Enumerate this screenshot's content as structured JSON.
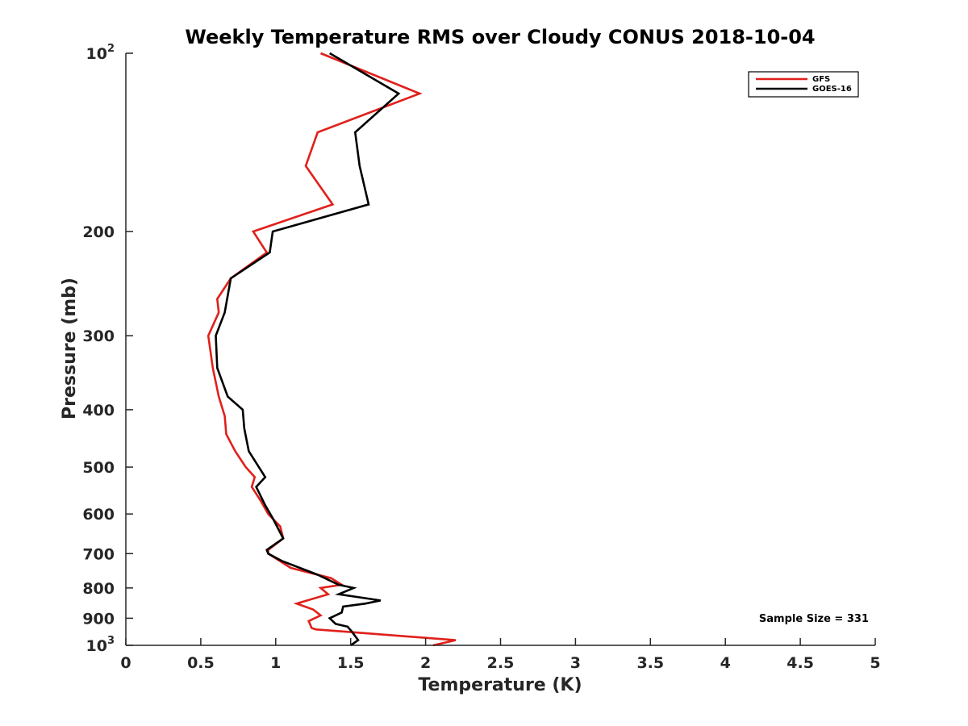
{
  "chart_data": {
    "type": "line",
    "title": "Weekly Temperature RMS over Cloudy CONUS 2018-10-04",
    "xlabel": "Temperature (K)",
    "ylabel": "Pressure (mb)",
    "xlim": [
      0,
      5
    ],
    "ylim": [
      100,
      1000
    ],
    "y_scale": "log",
    "y_reversed": true,
    "grid": false,
    "legend_position": "top-right",
    "x_ticks": [
      "0",
      "0.5",
      "1",
      "1.5",
      "2",
      "2.5",
      "3",
      "3.5",
      "4",
      "4.5",
      "5"
    ],
    "y_ticks": [
      {
        "value": 100,
        "base": "10",
        "exp": "2"
      },
      {
        "value": 200,
        "label": "200"
      },
      {
        "value": 300,
        "label": "300"
      },
      {
        "value": 400,
        "label": "400"
      },
      {
        "value": 500,
        "label": "500"
      },
      {
        "value": 600,
        "label": "600"
      },
      {
        "value": 700,
        "label": "700"
      },
      {
        "value": 800,
        "label": "800"
      },
      {
        "value": 900,
        "label": "900"
      },
      {
        "value": 1000,
        "base": "10",
        "exp": "3"
      }
    ],
    "annotation": "Sample Size = 331",
    "series": [
      {
        "name": "GFS",
        "color": "#e0201b",
        "points": [
          [
            1.3,
            100
          ],
          [
            1.96,
            117
          ],
          [
            1.28,
            136
          ],
          [
            1.2,
            155
          ],
          [
            1.38,
            180
          ],
          [
            0.85,
            200
          ],
          [
            0.94,
            217
          ],
          [
            0.7,
            240
          ],
          [
            0.61,
            260
          ],
          [
            0.62,
            274
          ],
          [
            0.55,
            300
          ],
          [
            0.58,
            340
          ],
          [
            0.62,
            380
          ],
          [
            0.66,
            410
          ],
          [
            0.67,
            440
          ],
          [
            0.73,
            470
          ],
          [
            0.8,
            500
          ],
          [
            0.86,
            520
          ],
          [
            0.84,
            540
          ],
          [
            0.9,
            570
          ],
          [
            0.95,
            600
          ],
          [
            1.03,
            630
          ],
          [
            1.05,
            660
          ],
          [
            0.95,
            690
          ],
          [
            0.95,
            700
          ],
          [
            1.1,
            740
          ],
          [
            1.37,
            770
          ],
          [
            1.44,
            790
          ],
          [
            1.3,
            800
          ],
          [
            1.35,
            820
          ],
          [
            1.14,
            850
          ],
          [
            1.25,
            870
          ],
          [
            1.3,
            890
          ],
          [
            1.22,
            910
          ],
          [
            1.24,
            935
          ],
          [
            1.27,
            940
          ],
          [
            1.5,
            950
          ],
          [
            2.2,
            980
          ],
          [
            2.05,
            1000
          ]
        ]
      },
      {
        "name": "GOES-16",
        "color": "#000000",
        "points": [
          [
            1.36,
            100
          ],
          [
            1.82,
            117
          ],
          [
            1.53,
            136
          ],
          [
            1.56,
            155
          ],
          [
            1.62,
            180
          ],
          [
            0.98,
            200
          ],
          [
            0.96,
            217
          ],
          [
            0.7,
            240
          ],
          [
            0.66,
            274
          ],
          [
            0.6,
            300
          ],
          [
            0.61,
            340
          ],
          [
            0.68,
            380
          ],
          [
            0.78,
            400
          ],
          [
            0.79,
            430
          ],
          [
            0.82,
            470
          ],
          [
            0.93,
            520
          ],
          [
            0.87,
            540
          ],
          [
            0.93,
            580
          ],
          [
            0.98,
            610
          ],
          [
            1.05,
            660
          ],
          [
            0.94,
            690
          ],
          [
            0.95,
            700
          ],
          [
            1.04,
            720
          ],
          [
            1.28,
            760
          ],
          [
            1.42,
            790
          ],
          [
            1.52,
            800
          ],
          [
            1.42,
            820
          ],
          [
            1.7,
            840
          ],
          [
            1.6,
            850
          ],
          [
            1.45,
            860
          ],
          [
            1.44,
            880
          ],
          [
            1.36,
            900
          ],
          [
            1.4,
            920
          ],
          [
            1.48,
            930
          ],
          [
            1.51,
            950
          ],
          [
            1.55,
            980
          ],
          [
            1.5,
            1000
          ]
        ]
      }
    ]
  }
}
